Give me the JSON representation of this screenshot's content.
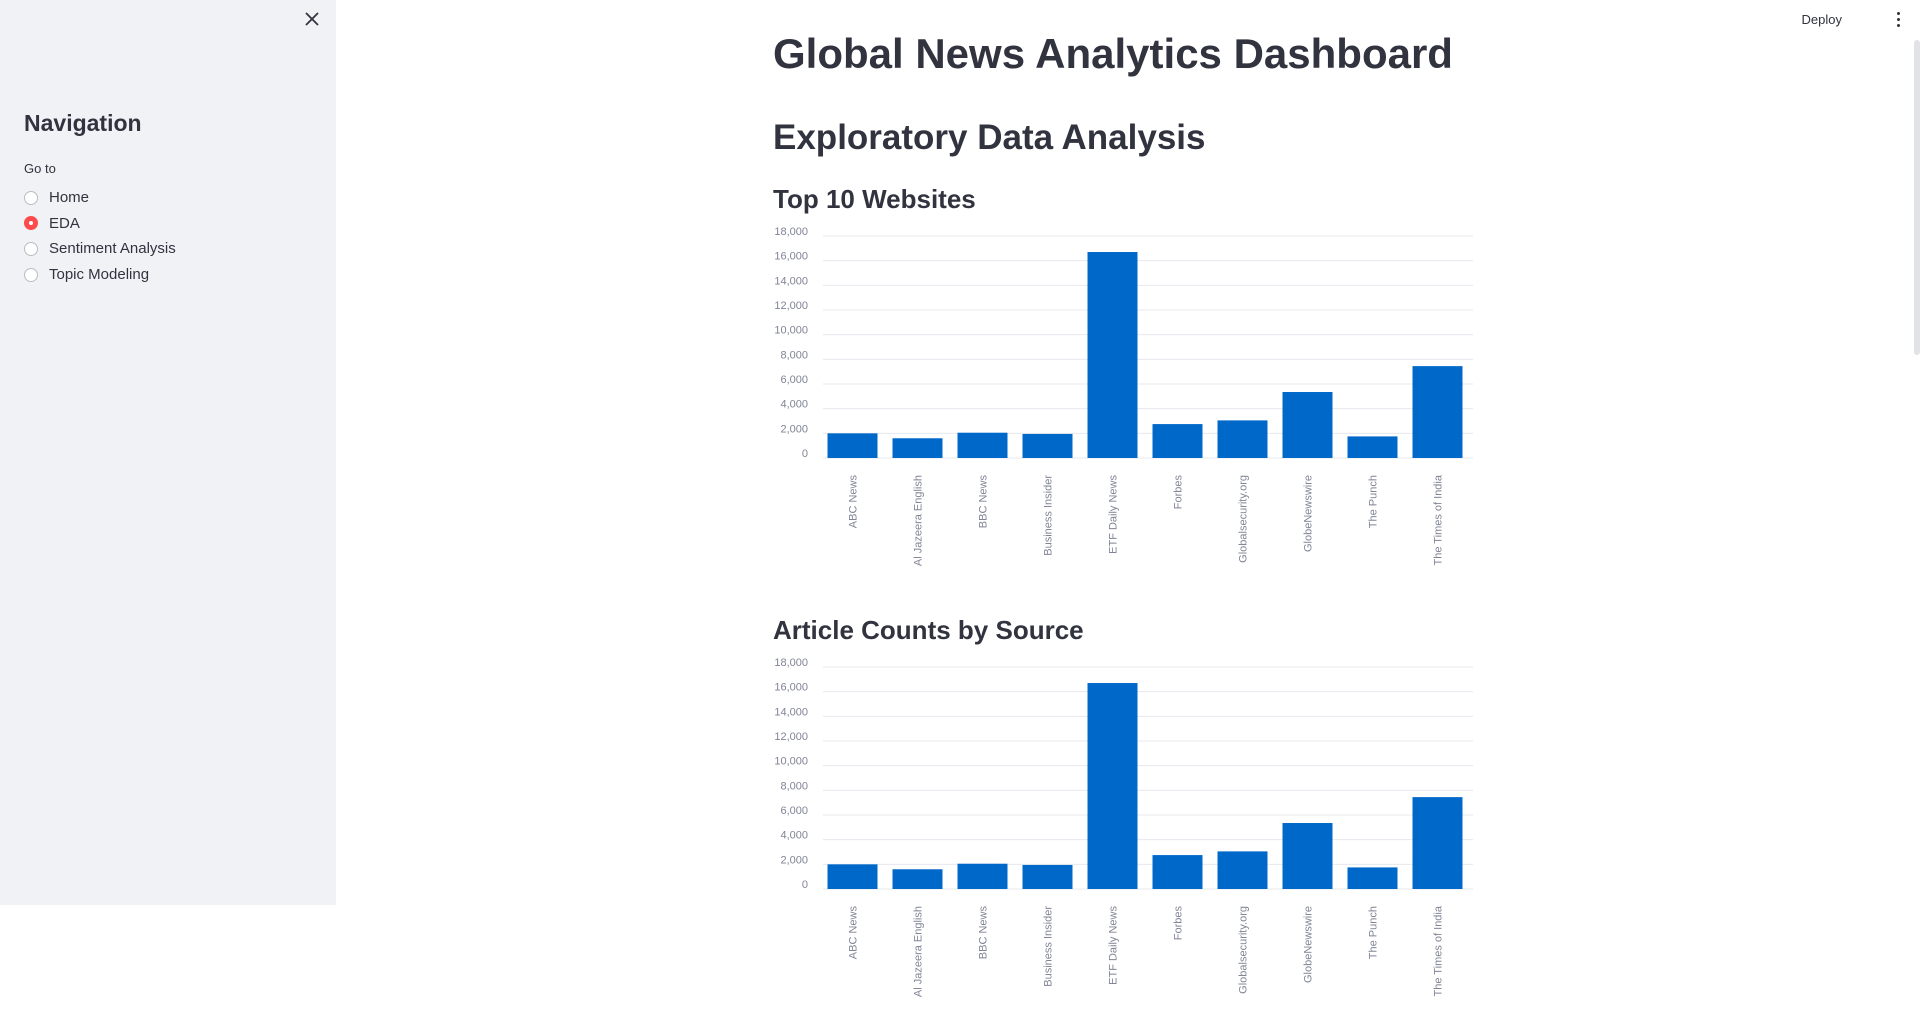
{
  "sidebar": {
    "close_icon": "close-icon",
    "title": "Navigation",
    "radio_group_label": "Go to",
    "items": [
      {
        "label": "Home",
        "selected": false
      },
      {
        "label": "EDA",
        "selected": true
      },
      {
        "label": "Sentiment Analysis",
        "selected": false
      },
      {
        "label": "Topic Modeling",
        "selected": false
      }
    ]
  },
  "toolbar": {
    "deploy_label": "Deploy",
    "menu_icon": "kebab-menu-icon"
  },
  "main": {
    "page_title": "Global News Analytics Dashboard",
    "section_title": "Exploratory Data Analysis",
    "charts": [
      {
        "title": "Top 10 Websites"
      },
      {
        "title": "Article Counts by Source"
      }
    ]
  },
  "colors": {
    "accent": "#ff4b4b",
    "bar": "#0068c9",
    "sidebar_bg": "#f0f2f6",
    "text": "#31333F",
    "axis_text": "#808495",
    "grid": "#e6e8ee"
  },
  "chart_data": [
    {
      "type": "bar",
      "title": "Top 10 Websites",
      "xlabel": "",
      "ylabel": "",
      "categories": [
        "ABC News",
        "Al Jazeera English",
        "BBC News",
        "Business Insider",
        "ETF Daily News",
        "Forbes",
        "Globalsecurity.org",
        "GlobeNewswire",
        "The Punch",
        "The Times of India"
      ],
      "values": [
        2000,
        1600,
        2050,
        1950,
        16700,
        2750,
        3050,
        5350,
        1750,
        7450
      ],
      "yticks": [
        "0",
        "2,000",
        "4,000",
        "6,000",
        "8,000",
        "10,000",
        "12,000",
        "14,000",
        "16,000",
        "18,000"
      ],
      "ylim": [
        0,
        18000
      ],
      "grid": true
    },
    {
      "type": "bar",
      "title": "Article Counts by Source",
      "xlabel": "",
      "ylabel": "",
      "categories": [
        "ABC News",
        "Al Jazeera English",
        "BBC News",
        "Business Insider",
        "ETF Daily News",
        "Forbes",
        "Globalsecurity.org",
        "GlobeNewswire",
        "The Punch",
        "The Times of India"
      ],
      "values": [
        2000,
        1600,
        2050,
        1950,
        16700,
        2750,
        3050,
        5350,
        1750,
        7450
      ],
      "yticks": [
        "0",
        "2,000",
        "4,000",
        "6,000",
        "8,000",
        "10,000",
        "12,000",
        "14,000",
        "16,000",
        "18,000"
      ],
      "ylim": [
        0,
        18000
      ],
      "grid": true
    }
  ]
}
